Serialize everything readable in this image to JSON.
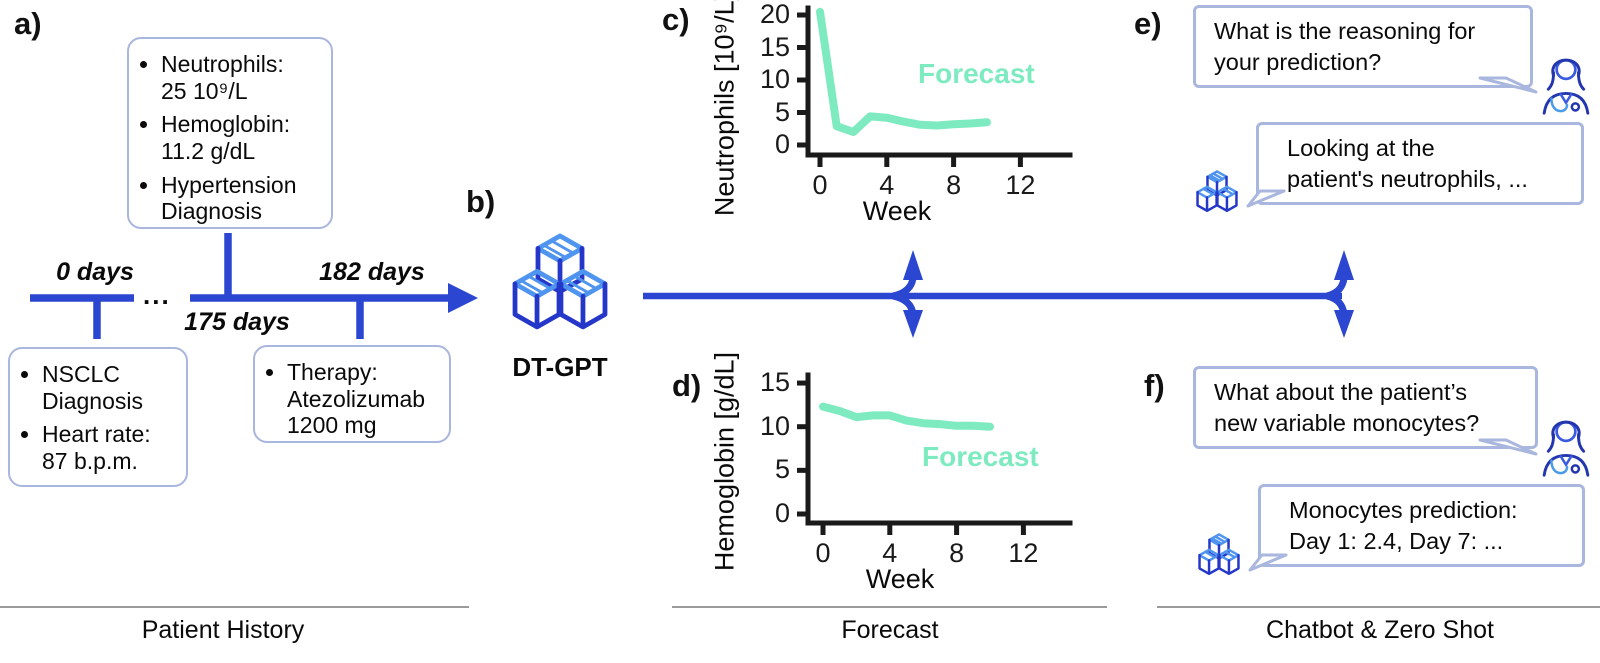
{
  "colors": {
    "arrow_blue": "#2b46d0",
    "cube_light_blue": "#4f95ef",
    "cube_dark_blue": "#2437c8",
    "bubble_border": "#a9b6dd",
    "doctor_dark_blue": "#2336ae",
    "doctor_mid_blue": "#3a5be0",
    "doctor_light_blue": "#4a9be8",
    "forecast_green": "#7eeac0",
    "axis_black": "#1a1a1a",
    "separator_gray": "#9a9a9a"
  },
  "panel_letters": {
    "a": "a)",
    "b": "b)",
    "c": "c)",
    "d": "d)",
    "e": "e)",
    "f": "f)"
  },
  "patient_history": {
    "section_label": "Patient History",
    "timeline_labels": {
      "start": "0 days",
      "ellipsis": "...",
      "mid": "175 days",
      "end": "182 days"
    },
    "box_top_items": [
      "Neutrophils:\n25 10⁹/L",
      "Hemoglobin:\n11.2 g/dL",
      "Hypertension\nDiagnosis"
    ],
    "box_left_items": [
      "NSCLC\nDiagnosis",
      "Heart rate:\n87 b.p.m."
    ],
    "box_right_items": [
      "Therapy:\nAtezolizumab\n1200 mg"
    ]
  },
  "model": {
    "label": "DT-GPT"
  },
  "forecast_section": {
    "section_label": "Forecast"
  },
  "chatbot": {
    "section_label": "Chatbot & Zero Shot",
    "e_question": "What is the reasoning for\nyour prediction?",
    "e_answer": "Looking at the\npatient's neutrophils, ...",
    "f_question": "What about the patient’s\nnew variable monocytes?",
    "f_answer": "Monocytes prediction:\nDay 1: 2.4, Day 7: ..."
  },
  "chart_data": [
    {
      "type": "line",
      "title": "",
      "xlabel": "Week",
      "ylabel": "Neutrophils [10⁹/L]",
      "x": [
        0,
        1,
        2,
        3,
        4,
        5,
        6,
        7,
        8,
        9,
        10
      ],
      "series": [
        {
          "name": "Forecast",
          "values": [
            20.5,
            2.9,
            2.0,
            4.4,
            4.2,
            3.6,
            3.1,
            3.0,
            3.2,
            3.3,
            3.5
          ]
        }
      ],
      "xticks": [
        0,
        4,
        8,
        12
      ],
      "yticks": [
        0,
        5,
        10,
        15,
        20
      ],
      "xlim": [
        0,
        14.5
      ],
      "ylim": [
        0,
        21
      ],
      "grid": false,
      "legend": "none",
      "annotation": "Forecast",
      "line_color": "#7eeac0",
      "axis_color": "#1a1a1a"
    },
    {
      "type": "line",
      "title": "",
      "xlabel": "Week",
      "ylabel": "Hemoglobin [g/dL]",
      "x": [
        0,
        1,
        2,
        3,
        4,
        5,
        6,
        7,
        8,
        9,
        10
      ],
      "series": [
        {
          "name": "Forecast",
          "values": [
            12.3,
            11.8,
            11.1,
            11.3,
            11.3,
            10.7,
            10.4,
            10.3,
            10.1,
            10.1,
            10.0
          ]
        }
      ],
      "xticks": [
        0,
        4,
        8,
        12
      ],
      "yticks": [
        0,
        5,
        10,
        15
      ],
      "xlim": [
        0,
        14.5
      ],
      "ylim": [
        0,
        15.5
      ],
      "grid": false,
      "legend": "none",
      "annotation": "Forecast",
      "line_color": "#7eeac0",
      "axis_color": "#1a1a1a"
    }
  ]
}
